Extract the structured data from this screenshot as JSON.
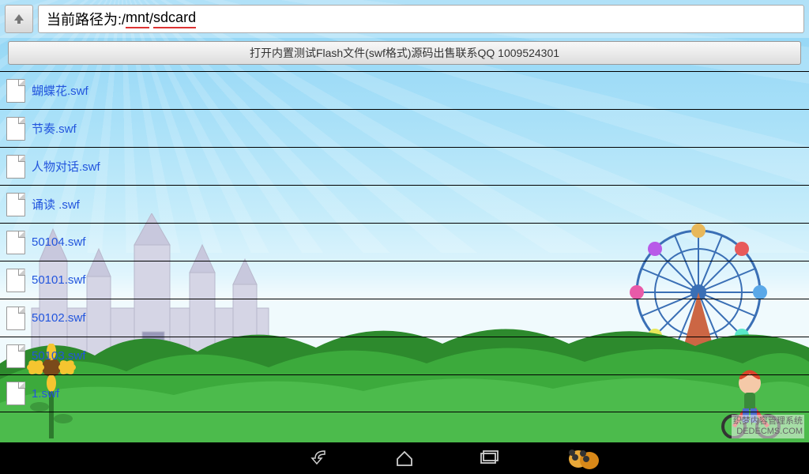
{
  "path": {
    "prefix": "当前路径为:/",
    "seg1": "mnt",
    "sep": "/",
    "seg2": "sdcard"
  },
  "action_button": "打开内置测试Flash文件(swf格式)源码出售联系QQ 1009524301",
  "files": [
    {
      "name": "蝴蝶花.swf"
    },
    {
      "name": "节奏.swf"
    },
    {
      "name": "人物对话.swf"
    },
    {
      "name": "诵读 .swf"
    },
    {
      "name": "50104.swf"
    },
    {
      "name": "50101.swf"
    },
    {
      "name": "50102.swf"
    },
    {
      "name": "50103.swf"
    },
    {
      "name": "1.swf"
    }
  ],
  "watermark": {
    "line1": "织梦内容管理系统",
    "line2": "DEDECMS.COM"
  },
  "colors": {
    "link": "#2255dd",
    "sky_top": "#8fd4f5",
    "grass": "#3caa3c",
    "castle": "#d5d5e5",
    "wheel": "#3a6fb5"
  }
}
